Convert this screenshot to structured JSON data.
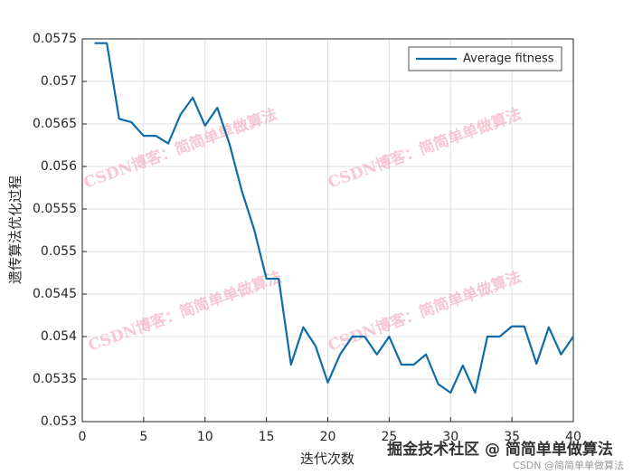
{
  "chart_data": {
    "type": "line",
    "xlabel": "迭代次数",
    "ylabel": "遗传算法优化过程",
    "x": [
      1,
      2,
      3,
      4,
      5,
      6,
      7,
      8,
      9,
      10,
      11,
      12,
      13,
      14,
      15,
      16,
      17,
      18,
      19,
      20,
      21,
      22,
      23,
      24,
      25,
      26,
      27,
      28,
      29,
      30,
      31,
      32,
      33,
      34,
      35,
      36,
      37,
      38,
      39,
      40
    ],
    "series": [
      {
        "name": "Average fitness",
        "color": "#0e6ca8",
        "values": [
          0.05745,
          0.05745,
          0.05656,
          0.05652,
          0.05636,
          0.05636,
          0.05627,
          0.05661,
          0.05681,
          0.05648,
          0.05669,
          0.05626,
          0.05571,
          0.05526,
          0.05468,
          0.05468,
          0.05367,
          0.05411,
          0.05389,
          0.05346,
          0.05379,
          0.054,
          0.054,
          0.05379,
          0.054,
          0.05367,
          0.05367,
          0.05379,
          0.05344,
          0.05334,
          0.05366,
          0.05334,
          0.054,
          0.054,
          0.05412,
          0.05412,
          0.05368,
          0.05411,
          0.05379,
          0.054
        ]
      }
    ],
    "xlim": [
      0,
      40
    ],
    "xticks": [
      0,
      5,
      10,
      15,
      20,
      25,
      30,
      35,
      40
    ],
    "ylim": [
      0.053,
      0.0575
    ],
    "yticks": [
      0.053,
      0.0535,
      0.054,
      0.0545,
      0.055,
      0.0555,
      0.056,
      0.0565,
      0.057,
      0.0575
    ],
    "grid": true,
    "legend": "upper right",
    "watermarks": [
      "CSDN博客：简简单单做算法",
      "CSDN博客：简简单单做算法",
      "CSDN博客：简简单单做算法",
      "CSDN博客：简简单单做算法"
    ],
    "footer": "掘金技术社区 @ 简简单单做算法",
    "footer_small": "CSDN @简简单单做算法"
  }
}
